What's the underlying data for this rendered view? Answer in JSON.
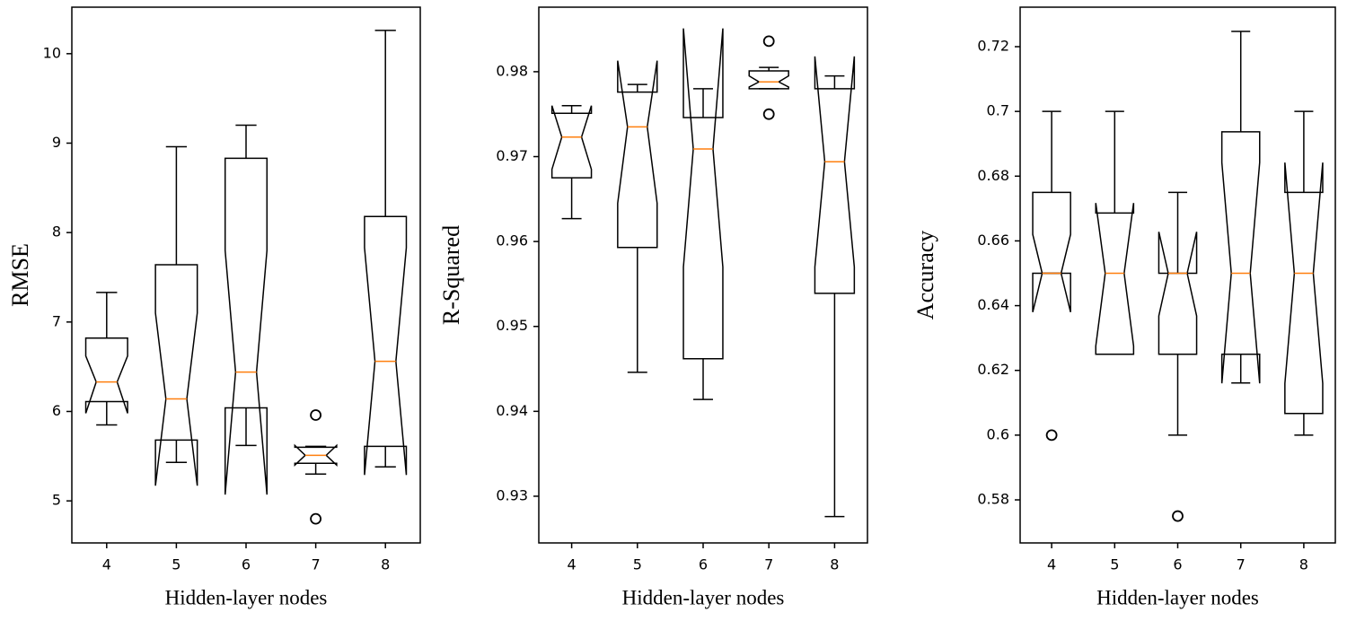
{
  "chart_data": [
    {
      "type": "box",
      "ylabel": "RMSE",
      "xlabel": "Hidden-layer nodes",
      "categories": [
        "4",
        "5",
        "6",
        "7",
        "8"
      ],
      "boxes": [
        {
          "whislo": 5.85,
          "q1": 6.11,
          "med": 6.33,
          "q3": 6.82,
          "whishi": 7.33,
          "notch_low": 5.98,
          "notch_high": 6.62
        },
        {
          "whislo": 5.43,
          "q1": 5.68,
          "med": 6.14,
          "q3": 7.64,
          "whishi": 8.96,
          "notch_low": 5.17,
          "notch_high": 7.1
        },
        {
          "whislo": 5.62,
          "q1": 6.04,
          "med": 6.44,
          "q3": 8.83,
          "whishi": 9.2,
          "notch_low": 5.07,
          "notch_high": 7.8
        },
        {
          "whislo": 5.3,
          "q1": 5.42,
          "med": 5.51,
          "q3": 5.6,
          "whishi": 5.61,
          "notch_low": 5.4,
          "notch_high": 5.62,
          "fliers": [
            5.96,
            4.8
          ]
        },
        {
          "whislo": 5.38,
          "q1": 5.61,
          "med": 6.56,
          "q3": 8.18,
          "whishi": 10.26,
          "notch_low": 5.29,
          "notch_high": 7.83
        }
      ],
      "ylim": [
        4.53,
        10.52
      ],
      "yticks": [
        5,
        6,
        7,
        8,
        9,
        10
      ],
      "box_color": "#000000",
      "median_color": "#ff7f0e"
    },
    {
      "type": "box",
      "ylabel": "R-Squared",
      "xlabel": "Hidden-layer nodes",
      "categories": [
        "4",
        "5",
        "6",
        "7",
        "8"
      ],
      "boxes": [
        {
          "whislo": 0.9627,
          "q1": 0.9675,
          "med": 0.9723,
          "q3": 0.9751,
          "whishi": 0.976,
          "notch_low": 0.9685,
          "notch_high": 0.976
        },
        {
          "whislo": 0.9446,
          "q1": 0.9593,
          "med": 0.9735,
          "q3": 0.9776,
          "whishi": 0.9785,
          "notch_low": 0.9645,
          "notch_high": 0.9813
        },
        {
          "whislo": 0.9414,
          "q1": 0.9462,
          "med": 0.9709,
          "q3": 0.9746,
          "whishi": 0.978,
          "notch_low": 0.957,
          "notch_high": 0.9851
        },
        {
          "whislo": 0.978,
          "q1": 0.978,
          "med": 0.9788,
          "q3": 0.9801,
          "whishi": 0.9805,
          "notch_low": 0.9782,
          "notch_high": 0.9795,
          "fliers": [
            0.9836,
            0.975
          ]
        },
        {
          "whislo": 0.9276,
          "q1": 0.9539,
          "med": 0.9694,
          "q3": 0.978,
          "whishi": 0.9795,
          "notch_low": 0.957,
          "notch_high": 0.9818
        }
      ],
      "ylim": [
        0.9245,
        0.9876
      ],
      "yticks": [
        0.93,
        0.94,
        0.95,
        0.96,
        0.97,
        0.98
      ],
      "box_color": "#000000",
      "median_color": "#ff7f0e"
    },
    {
      "type": "box",
      "ylabel": "Accuracy",
      "xlabel": "Hidden-layer nodes",
      "categories": [
        "4",
        "5",
        "6",
        "7",
        "8"
      ],
      "boxes": [
        {
          "whislo": 0.65,
          "q1": 0.65,
          "med": 0.65,
          "q3": 0.675,
          "whishi": 0.7,
          "notch_low": 0.638,
          "notch_high": 0.662,
          "fliers": [
            0.6
          ]
        },
        {
          "whislo": 0.625,
          "q1": 0.625,
          "med": 0.65,
          "q3": 0.6686,
          "whishi": 0.7,
          "notch_low": 0.6275,
          "notch_high": 0.6717
        },
        {
          "whislo": 0.6,
          "q1": 0.625,
          "med": 0.65,
          "q3": 0.65,
          "whishi": 0.675,
          "notch_low": 0.6368,
          "notch_high": 0.6628,
          "fliers": [
            0.575
          ]
        },
        {
          "whislo": 0.6161,
          "q1": 0.625,
          "med": 0.65,
          "q3": 0.6937,
          "whishi": 0.7247,
          "notch_low": 0.616,
          "notch_high": 0.6842
        },
        {
          "whislo": 0.6,
          "q1": 0.6067,
          "med": 0.65,
          "q3": 0.675,
          "whishi": 0.7,
          "notch_low": 0.616,
          "notch_high": 0.6842
        }
      ],
      "ylim": [
        0.5667,
        0.7322
      ],
      "yticks": [
        0.58,
        0.6,
        0.62,
        0.64,
        0.66,
        0.68,
        0.7,
        0.72
      ],
      "box_color": "#000000",
      "median_color": "#ff7f0e"
    }
  ]
}
